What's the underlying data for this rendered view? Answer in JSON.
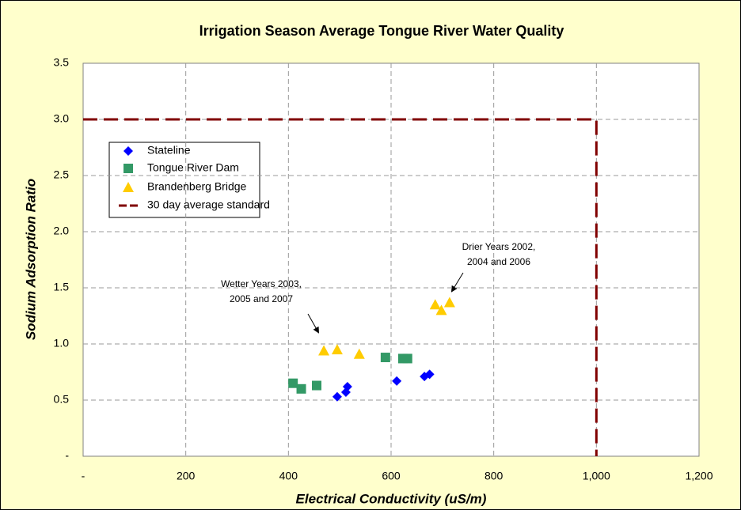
{
  "chart_data": {
    "type": "scatter",
    "title": "Irrigation Season Average Tongue River Water Quality",
    "x_label": "Electrical Conductivity (uS/m)",
    "y_label": "Sodium Adsorption Ratio",
    "xlim": [
      0,
      1200
    ],
    "ylim": [
      0,
      3.5
    ],
    "xticks": [
      {
        "value": 0,
        "label": "-"
      },
      200,
      400,
      600,
      800,
      {
        "value": 1000,
        "label": "1,000"
      },
      {
        "value": 1200,
        "label": "1,200"
      }
    ],
    "yticks": [
      {
        "value": 0,
        "label": "-"
      },
      0.5,
      {
        "value": 1,
        "label": "1.0"
      },
      1.5,
      {
        "value": 2,
        "label": "2.0"
      },
      2.5,
      {
        "value": 3,
        "label": "3.0"
      },
      3.5
    ],
    "grid": true,
    "legend": "upper left",
    "series": [
      {
        "name": "Stateline",
        "color": "#0000ff",
        "marker": "diamond",
        "x": [
          495,
          512,
          515,
          611,
          665,
          675
        ],
        "values": [
          0.53,
          0.57,
          0.62,
          0.67,
          0.71,
          0.73
        ]
      },
      {
        "name": "Tongue River Dam",
        "color": "#339966",
        "marker": "square",
        "x": [
          409,
          425,
          455,
          589,
          623,
          632
        ],
        "values": [
          0.65,
          0.6,
          0.63,
          0.88,
          0.87,
          0.87
        ]
      },
      {
        "name": "Brandenberg Bridge",
        "color": "#ffcc00",
        "marker": "triangle",
        "x": [
          469,
          495,
          538,
          686,
          698,
          714
        ],
        "values": [
          0.94,
          0.95,
          0.91,
          1.35,
          1.3,
          1.37
        ]
      },
      {
        "name": "30 day average standard",
        "color": "#800000",
        "marker": "line",
        "x": [
          0,
          1000,
          1000
        ],
        "values": [
          3,
          3,
          0
        ]
      }
    ],
    "annotations": [
      {
        "lines": [
          "Wetter Years 2003,",
          "2005 and 2007"
        ]
      },
      {
        "lines": [
          "Drier Years 2002,",
          "2004 and 2006"
        ]
      }
    ]
  }
}
